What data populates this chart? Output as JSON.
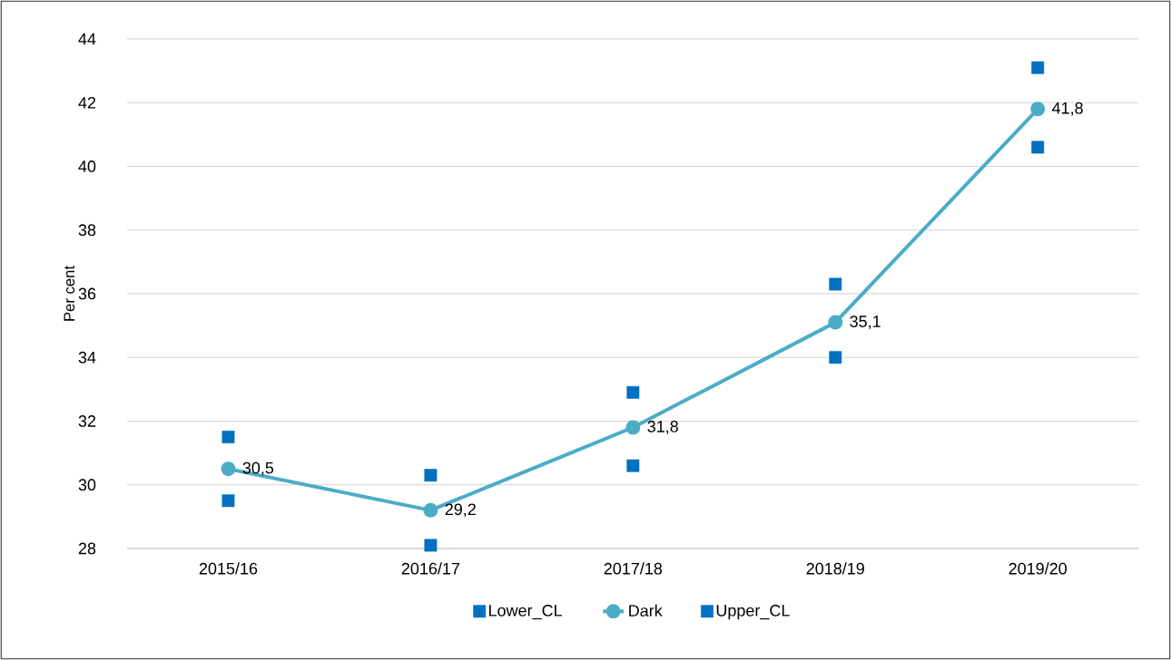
{
  "chart_data": {
    "type": "line",
    "ylabel": "Per cent",
    "categories": [
      "2015/16",
      "2016/17",
      "2017/18",
      "2018/19",
      "2019/20"
    ],
    "series": [
      {
        "name": "Lower_CL",
        "type": "scatter",
        "marker": "square",
        "color": "#0070c0",
        "values": [
          29.5,
          28.1,
          30.6,
          34.0,
          40.6
        ]
      },
      {
        "name": "Dark",
        "marker": "circle",
        "color": "#4bacc6",
        "values": [
          30.5,
          29.2,
          31.8,
          35.1,
          41.8
        ],
        "value_labels": [
          "30,5",
          "29,2",
          "31,8",
          "35,1",
          "41,8"
        ]
      },
      {
        "name": "Upper_CL",
        "type": "scatter",
        "marker": "square",
        "color": "#0070c0",
        "values": [
          31.5,
          30.3,
          32.9,
          36.3,
          43.1
        ]
      }
    ],
    "ylim": [
      28,
      44
    ],
    "yticks": [
      28,
      30,
      32,
      34,
      36,
      38,
      40,
      42,
      44
    ],
    "grid": "y",
    "legend": "bottom"
  }
}
